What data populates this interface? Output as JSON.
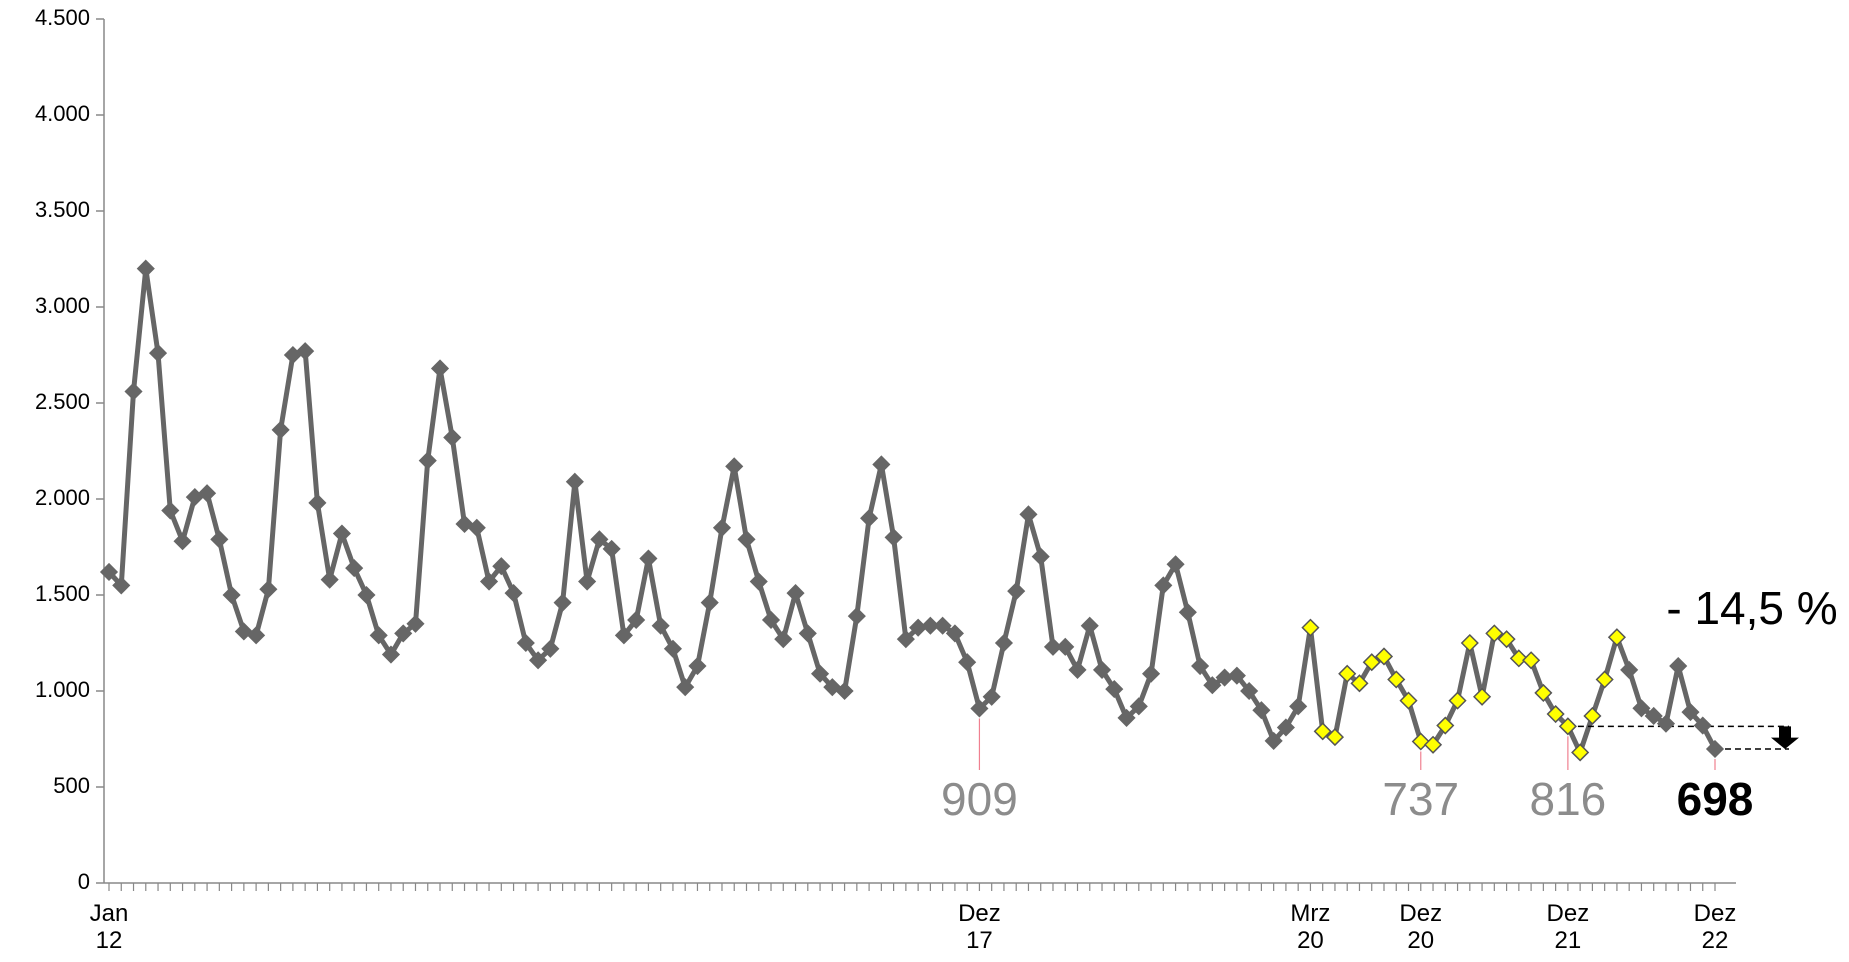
{
  "chart_data": {
    "type": "line",
    "categories": [
      "Jan\n12",
      null,
      null,
      null,
      null,
      null,
      null,
      null,
      null,
      null,
      null,
      null,
      null,
      null,
      null,
      null,
      null,
      null,
      null,
      null,
      null,
      null,
      null,
      null,
      null,
      null,
      null,
      null,
      null,
      null,
      null,
      null,
      null,
      null,
      null,
      null,
      null,
      null,
      null,
      null,
      null,
      null,
      null,
      null,
      null,
      null,
      null,
      null,
      null,
      null,
      null,
      null,
      null,
      null,
      null,
      null,
      null,
      null,
      null,
      null,
      null,
      null,
      null,
      null,
      null,
      null,
      null,
      null,
      null,
      null,
      null,
      "Dez\n17",
      null,
      null,
      null,
      null,
      null,
      null,
      null,
      null,
      null,
      null,
      null,
      null,
      null,
      null,
      null,
      null,
      null,
      null,
      null,
      null,
      null,
      null,
      null,
      null,
      null,
      null,
      "Mrz\n20",
      null,
      null,
      null,
      null,
      null,
      null,
      null,
      null,
      "Dez\n20",
      null,
      null,
      null,
      null,
      null,
      null,
      null,
      null,
      null,
      null,
      null,
      "Dez\n21",
      null,
      null,
      null,
      null,
      null,
      null,
      null,
      null,
      null,
      null,
      null,
      "Dez\n22"
    ],
    "values": [
      1620,
      1550,
      2560,
      3200,
      2760,
      1940,
      1780,
      2010,
      2030,
      1790,
      1500,
      1310,
      1290,
      1530,
      2360,
      2750,
      2770,
      1980,
      1580,
      1820,
      1640,
      1500,
      1290,
      1190,
      1300,
      1350,
      2200,
      2680,
      2320,
      1870,
      1850,
      1570,
      1650,
      1510,
      1250,
      1160,
      1220,
      1460,
      2090,
      1570,
      1790,
      1740,
      1290,
      1370,
      1690,
      1340,
      1220,
      1020,
      1130,
      1460,
      1850,
      2170,
      1790,
      1570,
      1370,
      1270,
      1510,
      1300,
      1090,
      1020,
      1000,
      1390,
      1900,
      2180,
      1800,
      1270,
      1330,
      1340,
      1340,
      1300,
      1150,
      909,
      970,
      1250,
      1520,
      1920,
      1700,
      1230,
      1230,
      1110,
      1340,
      1110,
      1010,
      860,
      920,
      1090,
      1550,
      1660,
      1410,
      1130,
      1030,
      1070,
      1080,
      1000,
      900,
      740,
      810,
      920,
      1330,
      790,
      760,
      1090,
      1040,
      1150,
      1180,
      1060,
      950,
      737,
      720,
      820,
      950,
      1250,
      970,
      1300,
      1270,
      1170,
      1160,
      990,
      880,
      816,
      680,
      870,
      1060,
      1280,
      1110,
      910,
      870,
      830,
      1130,
      890,
      820,
      698
    ],
    "value_labels": [
      null,
      null,
      null,
      null,
      null,
      null,
      null,
      null,
      null,
      null,
      null,
      null,
      null,
      null,
      null,
      null,
      null,
      null,
      null,
      null,
      null,
      null,
      null,
      null,
      null,
      null,
      null,
      null,
      null,
      null,
      null,
      null,
      null,
      null,
      null,
      null,
      null,
      null,
      null,
      null,
      null,
      null,
      null,
      null,
      null,
      null,
      null,
      null,
      null,
      null,
      null,
      null,
      null,
      null,
      null,
      null,
      null,
      null,
      null,
      null,
      null,
      null,
      null,
      null,
      null,
      null,
      null,
      null,
      null,
      null,
      null,
      "909",
      null,
      null,
      null,
      null,
      null,
      null,
      null,
      null,
      null,
      null,
      null,
      null,
      null,
      null,
      null,
      null,
      null,
      null,
      null,
      null,
      null,
      null,
      null,
      null,
      null,
      null,
      null,
      null,
      null,
      null,
      null,
      null,
      null,
      null,
      null,
      "737",
      null,
      null,
      null,
      null,
      null,
      null,
      null,
      null,
      null,
      null,
      null,
      "816",
      null,
      null,
      null,
      null,
      null,
      null,
      null,
      null,
      null,
      null,
      null,
      "698"
    ],
    "color": "#666666",
    "marker_colors": [
      "#666666",
      "#666666",
      "#666666",
      "#666666",
      "#666666",
      "#666666",
      "#666666",
      "#666666",
      "#666666",
      "#666666",
      "#666666",
      "#666666",
      "#666666",
      "#666666",
      "#666666",
      "#666666",
      "#666666",
      "#666666",
      "#666666",
      "#666666",
      "#666666",
      "#666666",
      "#666666",
      "#666666",
      "#666666",
      "#666666",
      "#666666",
      "#666666",
      "#666666",
      "#666666",
      "#666666",
      "#666666",
      "#666666",
      "#666666",
      "#666666",
      "#666666",
      "#666666",
      "#666666",
      "#666666",
      "#666666",
      "#666666",
      "#666666",
      "#666666",
      "#666666",
      "#666666",
      "#666666",
      "#666666",
      "#666666",
      "#666666",
      "#666666",
      "#666666",
      "#666666",
      "#666666",
      "#666666",
      "#666666",
      "#666666",
      "#666666",
      "#666666",
      "#666666",
      "#666666",
      "#666666",
      "#666666",
      "#666666",
      "#666666",
      "#666666",
      "#666666",
      "#666666",
      "#666666",
      "#666666",
      "#666666",
      "#666666",
      "#666666",
      "#666666",
      "#666666",
      "#666666",
      "#666666",
      "#666666",
      "#666666",
      "#666666",
      "#666666",
      "#666666",
      "#666666",
      "#666666",
      "#666666",
      "#666666",
      "#666666",
      "#666666",
      "#666666",
      "#666666",
      "#666666",
      "#666666",
      "#666666",
      "#666666",
      "#666666",
      "#666666",
      "#666666",
      "#666666",
      "#666666",
      "#ffff00",
      "#ffff00",
      "#ffff00",
      "#ffff00",
      "#ffff00",
      "#ffff00",
      "#ffff00",
      "#ffff00",
      "#ffff00",
      "#ffff00",
      "#ffff00",
      "#ffff00",
      "#ffff00",
      "#ffff00",
      "#ffff00",
      "#ffff00",
      "#ffff00",
      "#ffff00",
      "#ffff00",
      "#ffff00",
      "#ffff00",
      "#ffff00",
      "#ffff00",
      "#ffff00",
      "#ffff00",
      "#ffff00",
      "#666666",
      "#666666",
      "#666666",
      "#666666",
      "#666666",
      "#666666",
      "#666666",
      "#666666"
    ],
    "annotation": "- 14,5 %",
    "ylim": [
      0,
      4500
    ],
    "yticks": [
      0,
      500,
      {
        "value": 1000,
        "label": "1.000"
      },
      {
        "value": 1500,
        "label": "1.500"
      },
      {
        "value": 2000,
        "label": "2.000"
      },
      {
        "value": 2500,
        "label": "2.500"
      },
      {
        "value": 3000,
        "label": "3.000"
      },
      {
        "value": 3500,
        "label": "3.500"
      },
      {
        "value": 4000,
        "label": "4.000"
      },
      {
        "value": 4500,
        "label": "4.500"
      }
    ],
    "grid": false
  }
}
